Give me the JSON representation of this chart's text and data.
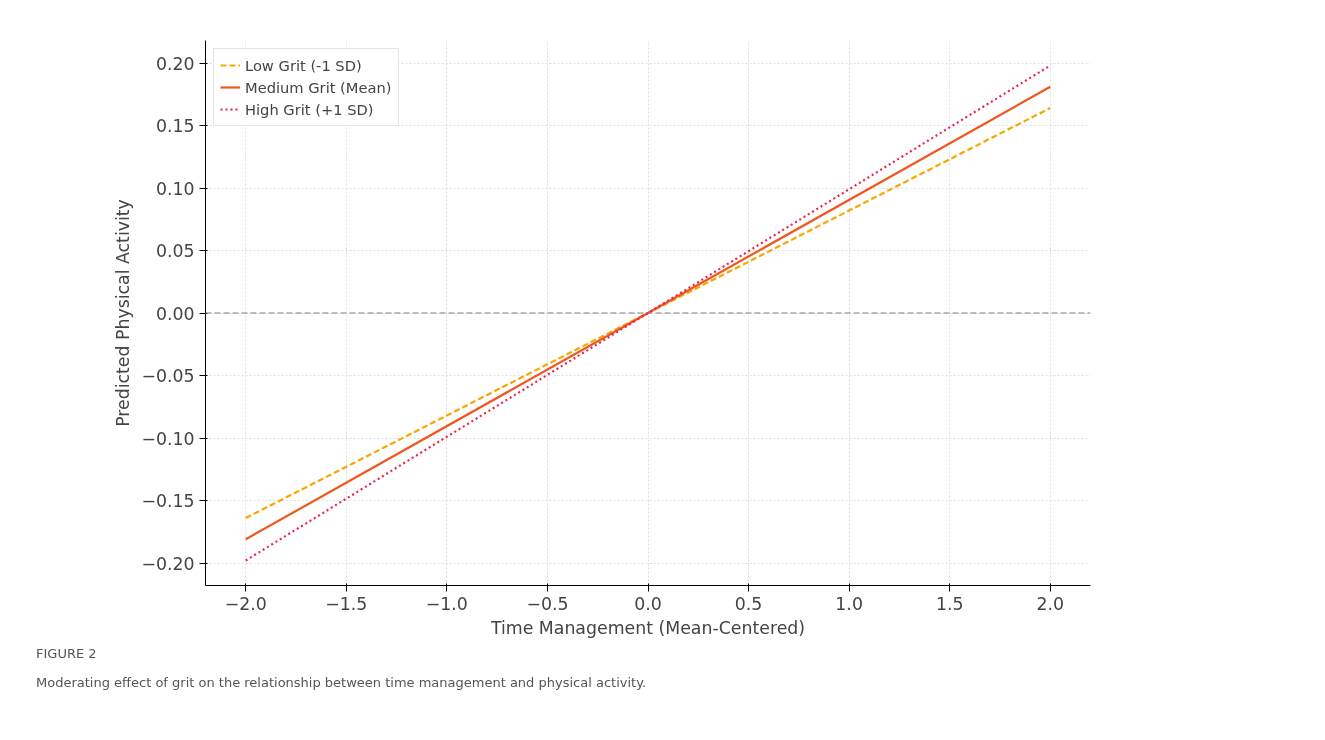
{
  "chart_data": {
    "type": "line",
    "xlabel": "Time Management (Mean-Centered)",
    "ylabel": "Predicted Physical Activity",
    "x": [
      -2.0,
      0.0,
      2.0
    ],
    "series": [
      {
        "name": "Low Grit (-1 SD)",
        "color": "#f5a800",
        "values": [
          -0.164,
          0.0,
          0.164
        ],
        "line_style": "dashed"
      },
      {
        "name": "Medium Grit (Mean)",
        "color": "#f0561d",
        "values": [
          -0.181,
          0.0,
          0.181
        ],
        "line_style": "solid"
      },
      {
        "name": "High Grit (+1 SD)",
        "color": "#e8254c",
        "values": [
          -0.198,
          0.0,
          0.198
        ],
        "line_style": "dotted"
      }
    ],
    "xlim": [
      -2.2,
      2.2
    ],
    "ylim": [
      -0.218,
      0.218
    ],
    "xticks": [
      {
        "value": -2.0,
        "label": "−2.0"
      },
      {
        "value": -1.5,
        "label": "−1.5"
      },
      {
        "value": -1.0,
        "label": "−1.0"
      },
      {
        "value": -0.5,
        "label": "−0.5"
      },
      {
        "value": 0.0,
        "label": "0.0"
      },
      {
        "value": 0.5,
        "label": "0.5"
      },
      {
        "value": 1.0,
        "label": "1.0"
      },
      {
        "value": 1.5,
        "label": "1.5"
      },
      {
        "value": 2.0,
        "label": "2.0"
      }
    ],
    "yticks": [
      {
        "value": -0.2,
        "label": "−0.20"
      },
      {
        "value": -0.15,
        "label": "−0.15"
      },
      {
        "value": -0.1,
        "label": "−0.10"
      },
      {
        "value": -0.05,
        "label": "−0.05"
      },
      {
        "value": 0.0,
        "label": "0.00"
      },
      {
        "value": 0.05,
        "label": "0.05"
      },
      {
        "value": 0.1,
        "label": "0.10"
      },
      {
        "value": 0.15,
        "label": "0.15"
      },
      {
        "value": 0.2,
        "label": "0.20"
      }
    ],
    "ref_lines": [
      {
        "axis": "y",
        "value": 0.0,
        "color": "#808080",
        "line_style": "dashed"
      }
    ],
    "grid": true,
    "legend": "top left",
    "annotations": [
      "FIGURE 2",
      "Moderating effect of grit on the relationship between time management and physical activity."
    ]
  }
}
